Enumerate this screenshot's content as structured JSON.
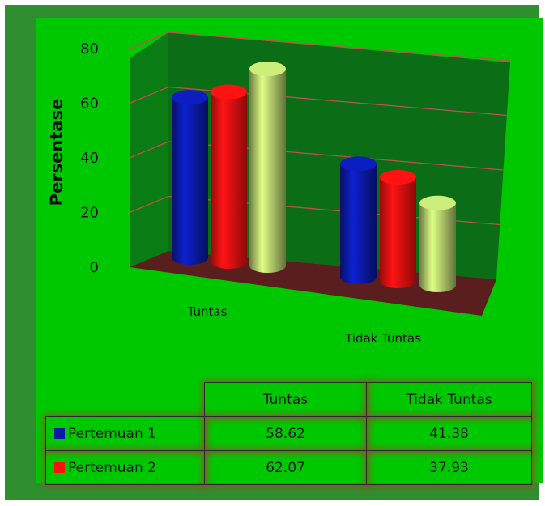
{
  "chart_data": {
    "type": "bar",
    "categories": [
      "Tuntas",
      "Tidak Tuntas"
    ],
    "series": [
      {
        "name": "Pertemuan 1",
        "values": [
          58.62,
          41.38
        ],
        "color": "#0a1aa8"
      },
      {
        "name": "Pertemuan 2",
        "values": [
          62.07,
          37.93
        ],
        "color": "#ff1010"
      },
      {
        "name": "",
        "values": [
          72,
          30
        ],
        "color": "#b3cf6c"
      }
    ],
    "ylabel": "Persentase",
    "yticks": [
      "0",
      "20",
      "40",
      "60",
      "80"
    ],
    "ylim": [
      0,
      80
    ],
    "grid": true,
    "legend": "data-table-below"
  },
  "table": {
    "headers": [
      "Tuntas",
      "Tidak Tuntas"
    ],
    "rows": [
      {
        "label": "Pertemuan 1",
        "color": "#0a1aa8",
        "values": [
          "58.62",
          "41.38"
        ]
      },
      {
        "label": "Pertemuan 2",
        "color": "#ff1010",
        "values": [
          "62.07",
          "37.93"
        ]
      }
    ]
  },
  "colors": {
    "background": "#00c800",
    "frame": "#2f8f2f",
    "back_wall": "#0b6e16",
    "floor": "#5a1e1e",
    "gridline": "#c05050"
  }
}
